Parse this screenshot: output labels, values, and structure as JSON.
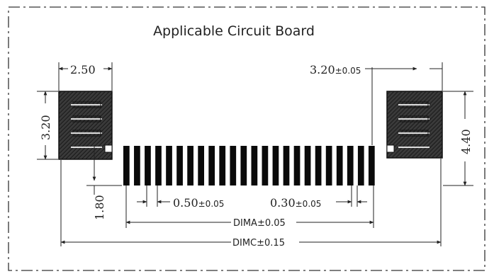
{
  "title": "Applicable Circuit Board",
  "dimensions": {
    "pad_width": "2.50",
    "pad_height": "3.20",
    "pad_top_offset": "3.20",
    "pad_top_offset_tol": "±0.05",
    "pad_total_height": "4.40",
    "finger_length": "1.80",
    "pitch": "0.50",
    "pitch_tol": "±0.05",
    "finger_width": "0.30",
    "finger_width_tol": "±0.05",
    "dim_a": "DIMA±0.05",
    "dim_c": "DIMC±0.15"
  },
  "finger_count": 24,
  "colors": {
    "pad": "#2b2b2b",
    "line": "#222222",
    "frame": "#333333"
  }
}
